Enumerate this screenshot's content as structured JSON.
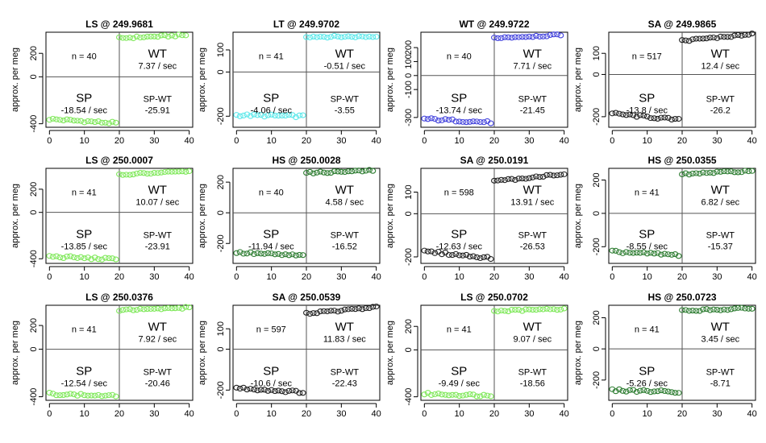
{
  "figure_ylabel": "approx. per meg",
  "chart_data": [
    {
      "type": "scatter",
      "title": "LS @ 249.9681",
      "color": "#7fe85a",
      "n_label": "n = 40",
      "wt_label": "WT",
      "wt_rate": "7.37 / sec",
      "sp_label": "SP",
      "sp_rate": "-18.54 / sec",
      "spwt_label": "SP-WT",
      "spwt_value": "-25.91",
      "ylim": [
        -430,
        380
      ],
      "yticks": [
        -400,
        0,
        200
      ],
      "ytick_labels": [
        "-400",
        "0",
        "200"
      ],
      "xlim": [
        -1,
        41
      ],
      "xticks": [
        0,
        10,
        20,
        30,
        40
      ],
      "xtick_labels": [
        "0",
        "10",
        "20",
        "30",
        "40"
      ],
      "sp_level": [
        -360,
        -395
      ],
      "wt_level": [
        330,
        355
      ]
    },
    {
      "type": "scatter",
      "title": "LT @ 249.9702",
      "color": "#5ae8ea",
      "n_label": "n = 41",
      "wt_label": "WT",
      "wt_rate": "-0.51 / sec",
      "sp_label": "SP",
      "sp_rate": "-4.06 / sec",
      "spwt_label": "SP-WT",
      "spwt_value": "-3.55",
      "ylim": [
        -250,
        180
      ],
      "yticks": [
        -200,
        0,
        100
      ],
      "ytick_labels": [
        "-200",
        "0",
        "100"
      ],
      "xlim": [
        -1,
        41
      ],
      "xticks": [
        0,
        10,
        20,
        30,
        40
      ],
      "xtick_labels": [
        "0",
        "10",
        "20",
        "30",
        "40"
      ],
      "sp_level": [
        -195,
        -200
      ],
      "wt_level": [
        160,
        160
      ]
    },
    {
      "type": "scatter",
      "title": "WT @ 249.9722",
      "color": "#4444dd",
      "n_label": "n = 40",
      "wt_label": "WT",
      "wt_rate": "7.71 / sec",
      "sp_label": "SP",
      "sp_rate": "-13.74 / sec",
      "spwt_label": "SP-WT",
      "spwt_value": "-21.45",
      "ylim": [
        -370,
        310
      ],
      "yticks": [
        -300,
        -100,
        0,
        100,
        200
      ],
      "ytick_labels": [
        "-300",
        "-100",
        "0",
        "100",
        "200"
      ],
      "xlim": [
        -1,
        41
      ],
      "xticks": [
        0,
        10,
        20,
        30,
        40
      ],
      "xtick_labels": [
        "0",
        "10",
        "20",
        "30",
        "40"
      ],
      "sp_level": [
        -310,
        -335
      ],
      "wt_level": [
        270,
        290
      ]
    },
    {
      "type": "scatter",
      "title": "SA @ 249.9865",
      "color": "#222222",
      "n_label": "n = 517",
      "wt_label": "WT",
      "wt_rate": "12.4 / sec",
      "sp_label": "SP",
      "sp_rate": "-13.8 / sec",
      "spwt_label": "SP-WT",
      "spwt_value": "-26.2",
      "ylim": [
        -250,
        200
      ],
      "yticks": [
        -200,
        0,
        100
      ],
      "ytick_labels": [
        "-200",
        "0",
        "100"
      ],
      "xlim": [
        -1,
        41
      ],
      "xticks": [
        0,
        10,
        20,
        30,
        40
      ],
      "xtick_labels": [
        "0",
        "10",
        "20",
        "30",
        "40"
      ],
      "sp_level": [
        -185,
        -215
      ],
      "wt_level": [
        160,
        190
      ]
    },
    {
      "type": "scatter",
      "title": "LS @ 250.0007",
      "color": "#7fe85a",
      "n_label": "n = 41",
      "wt_label": "WT",
      "wt_rate": "10.07 / sec",
      "sp_label": "SP",
      "sp_rate": "-13.85 / sec",
      "spwt_label": "SP-WT",
      "spwt_value": "-23.91",
      "ylim": [
        -440,
        380
      ],
      "yticks": [
        -400,
        0,
        200
      ],
      "ytick_labels": [
        "-400",
        "0",
        "200"
      ],
      "xlim": [
        -1,
        41
      ],
      "xticks": [
        0,
        10,
        20,
        30,
        40
      ],
      "xtick_labels": [
        "0",
        "10",
        "20",
        "30",
        "40"
      ],
      "sp_level": [
        -380,
        -405
      ],
      "wt_level": [
        325,
        355
      ]
    },
    {
      "type": "scatter",
      "title": "HS @ 250.0028",
      "color": "#2e7d32",
      "n_label": "n = 40",
      "wt_label": "WT",
      "wt_rate": "4.58 / sec",
      "sp_label": "SP",
      "sp_rate": "-11.94 / sec",
      "spwt_label": "SP-WT",
      "spwt_value": "-16.52",
      "ylim": [
        -330,
        290
      ],
      "yticks": [
        -200,
        0,
        200
      ],
      "ytick_labels": [
        "-200",
        "0",
        "200"
      ],
      "xlim": [
        -1,
        41
      ],
      "xticks": [
        0,
        10,
        20,
        30,
        40
      ],
      "xtick_labels": [
        "0",
        "10",
        "20",
        "30",
        "40"
      ],
      "sp_level": [
        -260,
        -280
      ],
      "wt_level": [
        260,
        275
      ]
    },
    {
      "type": "scatter",
      "title": "SA @ 250.0191",
      "color": "#222222",
      "n_label": "n = 598",
      "wt_label": "WT",
      "wt_rate": "13.91 / sec",
      "sp_label": "SP",
      "sp_rate": "-12.63 / sec",
      "spwt_label": "SP-WT",
      "spwt_value": "-26.53",
      "ylim": [
        -230,
        210
      ],
      "yticks": [
        -200,
        0,
        100
      ],
      "ytick_labels": [
        "-200",
        "0",
        "100"
      ],
      "xlim": [
        -1,
        41
      ],
      "xticks": [
        0,
        10,
        20,
        30,
        40
      ],
      "xtick_labels": [
        "0",
        "10",
        "20",
        "30",
        "40"
      ],
      "sp_level": [
        -175,
        -205
      ],
      "wt_level": [
        150,
        185
      ]
    },
    {
      "type": "scatter",
      "title": "HS @ 250.0355",
      "color": "#2e7d32",
      "n_label": "n = 41",
      "wt_label": "WT",
      "wt_rate": "6.82 / sec",
      "sp_label": "SP",
      "sp_rate": "-8.55 / sec",
      "spwt_label": "SP-WT",
      "spwt_value": "-15.37",
      "ylim": [
        -300,
        270
      ],
      "yticks": [
        -200,
        0,
        200
      ],
      "ytick_labels": [
        "-200",
        "0",
        "200"
      ],
      "xlim": [
        -1,
        41
      ],
      "xticks": [
        0,
        10,
        20,
        30,
        40
      ],
      "xtick_labels": [
        "0",
        "10",
        "20",
        "30",
        "40"
      ],
      "sp_level": [
        -230,
        -250
      ],
      "wt_level": [
        235,
        255
      ]
    },
    {
      "type": "scatter",
      "title": "LS @ 250.0376",
      "color": "#7fe85a",
      "n_label": "n = 41",
      "wt_label": "WT",
      "wt_rate": "7.92 / sec",
      "sp_label": "SP",
      "sp_rate": "-12.54 / sec",
      "spwt_label": "SP-WT",
      "spwt_value": "-20.46",
      "ylim": [
        -430,
        370
      ],
      "yticks": [
        -400,
        0,
        200
      ],
      "ytick_labels": [
        "-400",
        "0",
        "200"
      ],
      "xlim": [
        -1,
        41
      ],
      "xticks": [
        0,
        10,
        20,
        30,
        40
      ],
      "xtick_labels": [
        "0",
        "10",
        "20",
        "30",
        "40"
      ],
      "sp_level": [
        -375,
        -395
      ],
      "wt_level": [
        330,
        350
      ]
    },
    {
      "type": "scatter",
      "title": "SA @ 250.0539",
      "color": "#222222",
      "n_label": "n = 597",
      "wt_label": "WT",
      "wt_rate": "11.83 / sec",
      "sp_label": "SP",
      "sp_rate": "-10.6 / sec",
      "spwt_label": "SP-WT",
      "spwt_value": "-22.43",
      "ylim": [
        -250,
        215
      ],
      "yticks": [
        -200,
        0,
        100
      ],
      "ytick_labels": [
        "-200",
        "0",
        "100"
      ],
      "xlim": [
        -1,
        41
      ],
      "xticks": [
        0,
        10,
        20,
        30,
        40
      ],
      "xtick_labels": [
        "0",
        "10",
        "20",
        "30",
        "40"
      ],
      "sp_level": [
        -190,
        -210
      ],
      "wt_level": [
        175,
        205
      ]
    },
    {
      "type": "scatter",
      "title": "LS @ 250.0702",
      "color": "#7fe85a",
      "n_label": "n = 41",
      "wt_label": "WT",
      "wt_rate": "9.07 / sec",
      "sp_label": "SP",
      "sp_rate": "-9.49 / sec",
      "spwt_label": "SP-WT",
      "spwt_value": "-18.56",
      "ylim": [
        -430,
        380
      ],
      "yticks": [
        -400,
        0,
        200
      ],
      "ytick_labels": [
        "-400",
        "0",
        "200"
      ],
      "xlim": [
        -1,
        41
      ],
      "xticks": [
        0,
        10,
        20,
        30,
        40
      ],
      "xtick_labels": [
        "0",
        "10",
        "20",
        "30",
        "40"
      ],
      "sp_level": [
        -375,
        -390
      ],
      "wt_level": [
        330,
        350
      ]
    },
    {
      "type": "scatter",
      "title": "HS @ 250.0723",
      "color": "#2e7d32",
      "n_label": "n = 41",
      "wt_label": "WT",
      "wt_rate": "3.45 / sec",
      "sp_label": "SP",
      "sp_rate": "-5.26 / sec",
      "spwt_label": "SP-WT",
      "spwt_value": "-8.71",
      "ylim": [
        -330,
        280
      ],
      "yticks": [
        -200,
        0,
        200
      ],
      "ytick_labels": [
        "-200",
        "0",
        "200"
      ],
      "xlim": [
        -1,
        41
      ],
      "xticks": [
        0,
        10,
        20,
        30,
        40
      ],
      "xtick_labels": [
        "0",
        "10",
        "20",
        "30",
        "40"
      ],
      "sp_level": [
        -265,
        -275
      ],
      "wt_level": [
        245,
        260
      ]
    }
  ]
}
